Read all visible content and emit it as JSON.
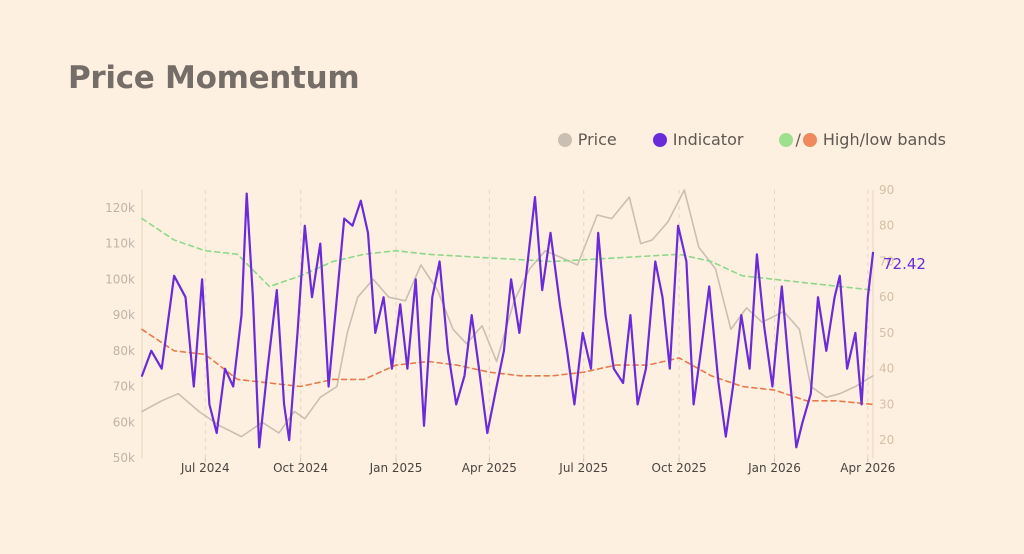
{
  "title": "Price Momentum",
  "colors": {
    "background": "#fdf0e0",
    "price": "#c9bfb2",
    "indicator": "#6a2bd8",
    "high_band": "#8ed88a",
    "low_band": "#e8794a",
    "axis_text_left": "#c0b3a8",
    "axis_text_right": "#d4c0a4",
    "date_text": "#4a4440"
  },
  "legend": {
    "price_label": "Price",
    "indicator_label": "Indicator",
    "bands_slash": "/",
    "bands_label": "High/low bands"
  },
  "chart_data": {
    "type": "line",
    "title": "Price Momentum",
    "x_start": "2024-05-01",
    "x_end": "2026-04-06",
    "x_ticks": [
      {
        "date": "2024-07-01",
        "label": "Jul 2024"
      },
      {
        "date": "2024-10-01",
        "label": "Oct 2024"
      },
      {
        "date": "2025-01-01",
        "label": "Jan 2025"
      },
      {
        "date": "2025-04-01",
        "label": "Apr 2025"
      },
      {
        "date": "2025-07-01",
        "label": "Jul 2025"
      },
      {
        "date": "2025-10-01",
        "label": "Oct 2025"
      },
      {
        "date": "2026-01-01",
        "label": "Jan 2026"
      },
      {
        "date": "2026-04-01",
        "label": "Apr 2026"
      }
    ],
    "y_left": {
      "range": [
        50000,
        125000
      ],
      "ticks": [
        50000,
        60000,
        70000,
        80000,
        90000,
        100000,
        110000,
        120000
      ],
      "tick_labels": [
        "50k",
        "60k",
        "70k",
        "80k",
        "90k",
        "100k",
        "110k",
        "120k"
      ]
    },
    "y_right": {
      "range": [
        15,
        90
      ],
      "ticks": [
        20,
        30,
        40,
        50,
        60,
        70,
        80,
        90
      ],
      "tick_labels": [
        "20",
        "30",
        "40",
        "50",
        "60",
        "70",
        "80",
        "90"
      ]
    },
    "last_value_label": "72.42",
    "series": [
      {
        "name": "Price",
        "axis": "left",
        "points": [
          [
            "2024-05-01",
            63000
          ],
          [
            "2024-05-20",
            66000
          ],
          [
            "2024-06-05",
            68000
          ],
          [
            "2024-06-25",
            63000
          ],
          [
            "2024-07-15",
            59000
          ],
          [
            "2024-08-05",
            56000
          ],
          [
            "2024-08-25",
            60000
          ],
          [
            "2024-09-10",
            57000
          ],
          [
            "2024-09-25",
            63000
          ],
          [
            "2024-10-05",
            61000
          ],
          [
            "2024-10-20",
            67000
          ],
          [
            "2024-11-05",
            70000
          ],
          [
            "2024-11-15",
            85000
          ],
          [
            "2024-11-25",
            95000
          ],
          [
            "2024-12-10",
            100000
          ],
          [
            "2024-12-25",
            95000
          ],
          [
            "2025-01-10",
            94000
          ],
          [
            "2025-01-25",
            104000
          ],
          [
            "2025-02-10",
            97000
          ],
          [
            "2025-02-25",
            86000
          ],
          [
            "2025-03-10",
            82000
          ],
          [
            "2025-03-25",
            87000
          ],
          [
            "2025-04-08",
            77000
          ],
          [
            "2025-04-25",
            94000
          ],
          [
            "2025-05-10",
            103000
          ],
          [
            "2025-05-25",
            108000
          ],
          [
            "2025-06-10",
            106000
          ],
          [
            "2025-06-25",
            104000
          ],
          [
            "2025-07-14",
            118000
          ],
          [
            "2025-07-28",
            117000
          ],
          [
            "2025-08-14",
            123000
          ],
          [
            "2025-08-25",
            110000
          ],
          [
            "2025-09-05",
            111000
          ],
          [
            "2025-09-20",
            116000
          ],
          [
            "2025-10-06",
            125000
          ],
          [
            "2025-10-20",
            109000
          ],
          [
            "2025-11-05",
            103000
          ],
          [
            "2025-11-20",
            86000
          ],
          [
            "2025-12-05",
            92000
          ],
          [
            "2025-12-20",
            88000
          ],
          [
            "2026-01-10",
            91000
          ],
          [
            "2026-01-25",
            86000
          ],
          [
            "2026-02-05",
            70000
          ],
          [
            "2026-02-20",
            67000
          ],
          [
            "2026-03-05",
            68000
          ],
          [
            "2026-03-20",
            70000
          ],
          [
            "2026-04-06",
            73000
          ]
        ]
      },
      {
        "name": "Indicator",
        "axis": "right",
        "points": [
          [
            "2024-05-01",
            38
          ],
          [
            "2024-05-10",
            45
          ],
          [
            "2024-05-20",
            40
          ],
          [
            "2024-06-01",
            66
          ],
          [
            "2024-06-12",
            60
          ],
          [
            "2024-06-20",
            35
          ],
          [
            "2024-06-28",
            65
          ],
          [
            "2024-07-05",
            30
          ],
          [
            "2024-07-12",
            22
          ],
          [
            "2024-07-20",
            40
          ],
          [
            "2024-07-28",
            35
          ],
          [
            "2024-08-05",
            55
          ],
          [
            "2024-08-10",
            89
          ],
          [
            "2024-08-16",
            60
          ],
          [
            "2024-08-22",
            18
          ],
          [
            "2024-08-30",
            40
          ],
          [
            "2024-09-08",
            62
          ],
          [
            "2024-09-15",
            30
          ],
          [
            "2024-09-20",
            20
          ],
          [
            "2024-09-28",
            50
          ],
          [
            "2024-10-05",
            80
          ],
          [
            "2024-10-12",
            60
          ],
          [
            "2024-10-20",
            75
          ],
          [
            "2024-10-28",
            35
          ],
          [
            "2024-11-05",
            60
          ],
          [
            "2024-11-12",
            82
          ],
          [
            "2024-11-20",
            80
          ],
          [
            "2024-11-28",
            87
          ],
          [
            "2024-12-05",
            78
          ],
          [
            "2024-12-12",
            50
          ],
          [
            "2024-12-20",
            60
          ],
          [
            "2024-12-28",
            40
          ],
          [
            "2025-01-05",
            58
          ],
          [
            "2025-01-12",
            40
          ],
          [
            "2025-01-20",
            65
          ],
          [
            "2025-01-28",
            24
          ],
          [
            "2025-02-05",
            60
          ],
          [
            "2025-02-12",
            70
          ],
          [
            "2025-02-20",
            45
          ],
          [
            "2025-02-28",
            30
          ],
          [
            "2025-03-08",
            38
          ],
          [
            "2025-03-15",
            55
          ],
          [
            "2025-03-22",
            40
          ],
          [
            "2025-03-30",
            22
          ],
          [
            "2025-04-08",
            35
          ],
          [
            "2025-04-15",
            45
          ],
          [
            "2025-04-22",
            65
          ],
          [
            "2025-04-30",
            50
          ],
          [
            "2025-05-08",
            70
          ],
          [
            "2025-05-15",
            88
          ],
          [
            "2025-05-22",
            62
          ],
          [
            "2025-05-30",
            78
          ],
          [
            "2025-06-08",
            58
          ],
          [
            "2025-06-15",
            45
          ],
          [
            "2025-06-22",
            30
          ],
          [
            "2025-06-30",
            50
          ],
          [
            "2025-07-08",
            40
          ],
          [
            "2025-07-15",
            78
          ],
          [
            "2025-07-22",
            55
          ],
          [
            "2025-07-30",
            40
          ],
          [
            "2025-08-08",
            36
          ],
          [
            "2025-08-15",
            55
          ],
          [
            "2025-08-22",
            30
          ],
          [
            "2025-08-30",
            40
          ],
          [
            "2025-09-08",
            70
          ],
          [
            "2025-09-15",
            60
          ],
          [
            "2025-09-22",
            40
          ],
          [
            "2025-09-30",
            80
          ],
          [
            "2025-10-08",
            70
          ],
          [
            "2025-10-15",
            30
          ],
          [
            "2025-10-22",
            45
          ],
          [
            "2025-10-30",
            63
          ],
          [
            "2025-11-08",
            36
          ],
          [
            "2025-11-15",
            21
          ],
          [
            "2025-11-22",
            35
          ],
          [
            "2025-11-30",
            55
          ],
          [
            "2025-12-08",
            40
          ],
          [
            "2025-12-15",
            72
          ],
          [
            "2025-12-22",
            52
          ],
          [
            "2025-12-30",
            35
          ],
          [
            "2026-01-08",
            63
          ],
          [
            "2026-01-15",
            40
          ],
          [
            "2026-01-22",
            18
          ],
          [
            "2026-01-28",
            25
          ],
          [
            "2026-02-05",
            33
          ],
          [
            "2026-02-12",
            60
          ],
          [
            "2026-02-20",
            45
          ],
          [
            "2026-02-28",
            60
          ],
          [
            "2026-03-05",
            66
          ],
          [
            "2026-03-12",
            40
          ],
          [
            "2026-03-20",
            50
          ],
          [
            "2026-03-26",
            30
          ],
          [
            "2026-04-01",
            60
          ],
          [
            "2026-04-06",
            72.42
          ]
        ]
      },
      {
        "name": "High band",
        "axis": "right",
        "points": [
          [
            "2024-05-01",
            82
          ],
          [
            "2024-06-01",
            76
          ],
          [
            "2024-07-01",
            73
          ],
          [
            "2024-08-01",
            72
          ],
          [
            "2024-09-01",
            63
          ],
          [
            "2024-10-01",
            66
          ],
          [
            "2024-11-01",
            70
          ],
          [
            "2024-12-01",
            72
          ],
          [
            "2025-01-01",
            73
          ],
          [
            "2025-02-01",
            72
          ],
          [
            "2025-04-01",
            71
          ],
          [
            "2025-06-01",
            70
          ],
          [
            "2025-08-01",
            71
          ],
          [
            "2025-10-01",
            72
          ],
          [
            "2025-11-01",
            70
          ],
          [
            "2025-12-01",
            66
          ],
          [
            "2026-02-01",
            64
          ],
          [
            "2026-04-06",
            62
          ]
        ]
      },
      {
        "name": "Low band",
        "axis": "right",
        "points": [
          [
            "2024-05-01",
            51
          ],
          [
            "2024-06-01",
            45
          ],
          [
            "2024-07-01",
            44
          ],
          [
            "2024-08-01",
            37
          ],
          [
            "2024-09-01",
            36
          ],
          [
            "2024-10-01",
            35
          ],
          [
            "2024-11-01",
            37
          ],
          [
            "2024-12-01",
            37
          ],
          [
            "2025-01-01",
            41
          ],
          [
            "2025-02-01",
            42
          ],
          [
            "2025-03-01",
            41
          ],
          [
            "2025-04-01",
            39
          ],
          [
            "2025-05-01",
            38
          ],
          [
            "2025-06-01",
            38
          ],
          [
            "2025-07-01",
            39
          ],
          [
            "2025-08-01",
            41
          ],
          [
            "2025-09-01",
            41
          ],
          [
            "2025-10-01",
            43
          ],
          [
            "2025-11-01",
            38
          ],
          [
            "2025-12-01",
            35
          ],
          [
            "2026-01-01",
            34
          ],
          [
            "2026-02-01",
            31
          ],
          [
            "2026-03-01",
            31
          ],
          [
            "2026-04-06",
            30
          ]
        ]
      }
    ]
  }
}
